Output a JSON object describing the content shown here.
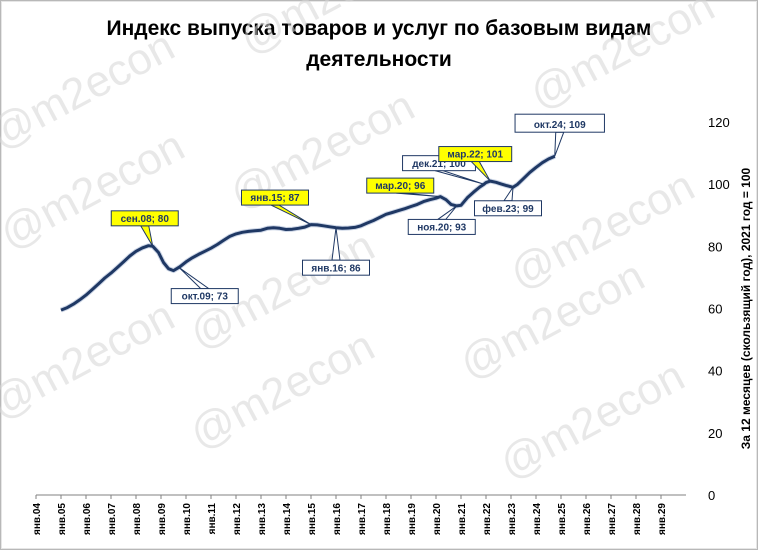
{
  "title_line1": "Индекс выпуска товаров и услуг по базовым видам",
  "title_line2": "деятельности",
  "watermark": "@m2econ",
  "chart_data": {
    "type": "line",
    "ylabel": "За 12 месяцев (скользящий год), 2021 год = 100",
    "ylim": [
      0,
      120
    ],
    "yticks": [
      0,
      20,
      40,
      60,
      80,
      100,
      120
    ],
    "xlim": [
      2004.0,
      2030.0
    ],
    "xticks": [
      "янв.04",
      "янв.05",
      "янв.06",
      "янв.07",
      "янв.08",
      "янв.09",
      "янв.10",
      "янв.11",
      "янв.12",
      "янв.13",
      "янв.14",
      "янв.15",
      "янв.16",
      "янв.17",
      "янв.18",
      "янв.19",
      "янв.20",
      "янв.21",
      "янв.22",
      "янв.23",
      "янв.24",
      "янв.25",
      "янв.26",
      "янв.27",
      "янв.28",
      "янв.29"
    ],
    "y_axis_position": "right",
    "grid": false,
    "line_color": "#1f3864",
    "series": [
      {
        "x": [
          2005.0,
          2005.25,
          2005.5,
          2005.75,
          2006.0,
          2006.25,
          2006.5,
          2006.75,
          2007.0,
          2007.25,
          2007.5,
          2007.75,
          2008.0,
          2008.25,
          2008.5,
          2008.67,
          2008.9,
          2009.1,
          2009.3,
          2009.5,
          2009.75,
          2010.0,
          2010.25,
          2010.5,
          2010.75,
          2011.0,
          2011.25,
          2011.5,
          2011.75,
          2012.0,
          2012.25,
          2012.5,
          2012.75,
          2013.0,
          2013.25,
          2013.5,
          2013.75,
          2014.0,
          2014.25,
          2014.5,
          2014.75,
          2015.0,
          2015.25,
          2015.5,
          2015.75,
          2016.0,
          2016.25,
          2016.5,
          2016.75,
          2017.0,
          2017.25,
          2017.5,
          2017.75,
          2018.0,
          2018.25,
          2018.5,
          2018.75,
          2019.0,
          2019.25,
          2019.5,
          2019.75,
          2020.0,
          2020.17,
          2020.4,
          2020.6,
          2020.83,
          2021.0,
          2021.25,
          2021.5,
          2021.75,
          2021.92,
          2022.0,
          2022.17,
          2022.4,
          2022.6,
          2022.8,
          2023.08,
          2023.25,
          2023.5,
          2023.75,
          2024.0,
          2024.25,
          2024.5,
          2024.75
        ],
        "y": [
          59.5,
          60.3,
          61.4,
          62.8,
          64.3,
          66.1,
          67.9,
          69.8,
          71.4,
          73.2,
          75.0,
          76.9,
          78.4,
          79.5,
          80.2,
          80.0,
          78.0,
          74.8,
          72.8,
          72.2,
          73.4,
          75.0,
          76.3,
          77.4,
          78.4,
          79.4,
          80.6,
          81.9,
          83.2,
          84.0,
          84.5,
          84.8,
          85.0,
          85.2,
          85.8,
          86.0,
          85.8,
          85.4,
          85.5,
          85.8,
          86.2,
          87.0,
          86.9,
          86.6,
          86.3,
          86.0,
          85.8,
          85.9,
          86.1,
          86.6,
          87.5,
          88.3,
          89.3,
          90.3,
          90.9,
          91.5,
          92.1,
          92.8,
          93.5,
          94.4,
          95.0,
          95.5,
          96.0,
          95.0,
          93.5,
          93.0,
          93.2,
          95.6,
          97.4,
          99.1,
          100.0,
          100.5,
          101.0,
          100.6,
          100.1,
          99.6,
          99.0,
          99.9,
          101.8,
          103.8,
          105.4,
          106.9,
          108.1,
          109.0
        ]
      }
    ],
    "annotations": [
      {
        "text": "сен.08; 80",
        "x": 2008.67,
        "y": 80,
        "highlight": true
      },
      {
        "text": "окт.09; 73",
        "x": 2009.75,
        "y": 73,
        "highlight": false
      },
      {
        "text": "янв.15; 87",
        "x": 2015.0,
        "y": 87,
        "highlight": true
      },
      {
        "text": "янв.16; 86",
        "x": 2016.0,
        "y": 86,
        "highlight": false
      },
      {
        "text": "мар.20; 96",
        "x": 2020.17,
        "y": 96,
        "highlight": true
      },
      {
        "text": "ноя.20; 93",
        "x": 2020.83,
        "y": 93,
        "highlight": false
      },
      {
        "text": "дек.21; 100",
        "x": 2021.92,
        "y": 100,
        "highlight": false
      },
      {
        "text": "мар.22; 101",
        "x": 2022.17,
        "y": 101,
        "highlight": true
      },
      {
        "text": "фев.23; 99",
        "x": 2023.08,
        "y": 99,
        "highlight": false
      },
      {
        "text": "окт.24; 109",
        "x": 2024.75,
        "y": 109,
        "highlight": false,
        "large": true
      }
    ]
  }
}
